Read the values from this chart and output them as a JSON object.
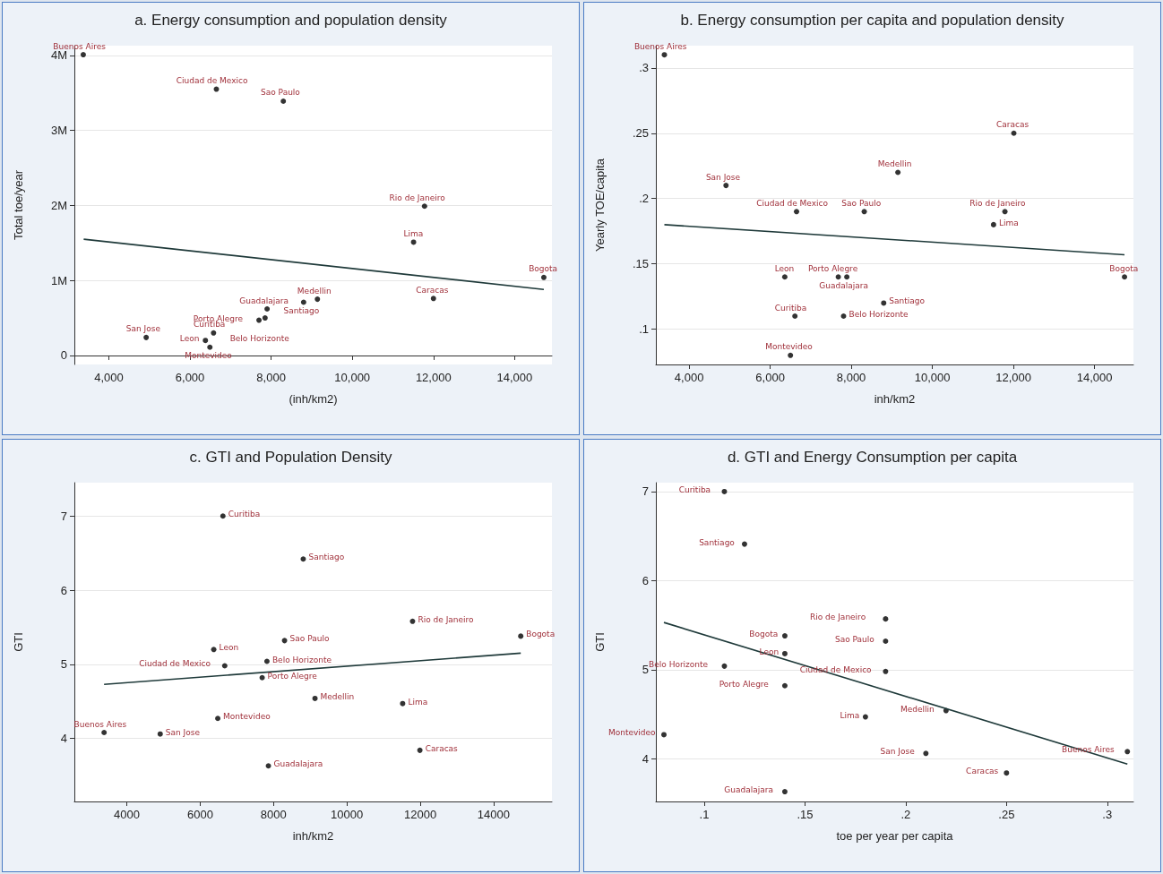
{
  "chart_data": [
    {
      "type": "scatter",
      "title": "a. Energy consumption and population density",
      "xlabel": "(inh/km2)",
      "ylabel": "Total toe/year",
      "xlim": [
        3150,
        14920
      ],
      "ylim": [
        -120000,
        4130000
      ],
      "xticks": [
        {
          "value": 4000,
          "label": "4,000"
        },
        {
          "value": 6000,
          "label": "6,000"
        },
        {
          "value": 8000,
          "label": "8,000"
        },
        {
          "value": 10000,
          "label": "10,000"
        },
        {
          "value": 12000,
          "label": "12,000"
        },
        {
          "value": 14000,
          "label": "14,000"
        }
      ],
      "yticks": [
        0,
        {
          "value": 1000000,
          "label": "1M"
        },
        {
          "value": 2000000,
          "label": "2M"
        },
        {
          "value": 3000000,
          "label": "3M"
        },
        {
          "value": 4000000,
          "label": "4M"
        }
      ],
      "grid": "y",
      "series": [
        {
          "marker": "circle",
          "color": "#000000",
          "x": [
            3370,
            6650,
            8300,
            11780,
            11510,
            14720,
            12000,
            9140,
            8800,
            7900,
            7850,
            7700,
            4920,
            6580,
            6380,
            6490
          ],
          "values": [
            4010000,
            3550000,
            3390000,
            1990000,
            1510000,
            1040000,
            760000,
            750000,
            710000,
            620000,
            500000,
            470000,
            240000,
            300000,
            200000,
            110000
          ]
        },
        {
          "type": "line",
          "color": "#1f3a3a",
          "x": [
            3380,
            14720
          ],
          "values": [
            1550000,
            880000
          ]
        }
      ],
      "annotations": [
        {
          "text": "Buenos Aires",
          "x": 3370,
          "y": 4010000
        },
        {
          "text": "Ciudad de Mexico",
          "x": 6650,
          "y": 3550000
        },
        {
          "text": "Sao Paulo",
          "x": 8300,
          "y": 3390000
        },
        {
          "text": "Rio de Janeiro",
          "x": 11780,
          "y": 1990000
        },
        {
          "text": "Lima",
          "x": 11510,
          "y": 1510000
        },
        {
          "text": "Bogota",
          "x": 14720,
          "y": 1040000
        },
        {
          "text": "Caracas",
          "x": 12000,
          "y": 760000
        },
        {
          "text": "Medellin",
          "x": 9140,
          "y": 750000
        },
        {
          "text": "Santiago",
          "x": 8800,
          "y": 710000
        },
        {
          "text": "Guadalajara",
          "x": 7900,
          "y": 620000
        },
        {
          "text": "Belo Horizonte",
          "x": 7850,
          "y": 500000
        },
        {
          "text": "Porto Alegre",
          "x": 7700,
          "y": 470000
        },
        {
          "text": "San Jose",
          "x": 4920,
          "y": 240000
        },
        {
          "text": "Curitiba",
          "x": 6580,
          "y": 300000
        },
        {
          "text": "Leon",
          "x": 6380,
          "y": 200000
        },
        {
          "text": "Montevideo",
          "x": 6490,
          "y": 110000
        }
      ]
    },
    {
      "type": "scatter",
      "title": "b. Energy consumption per capita and population density",
      "xlabel": "inh/km2",
      "ylabel": "Yearly TOE/capita",
      "xlim": [
        3180,
        14960
      ],
      "ylim": [
        0.073,
        0.317
      ],
      "xticks": [
        {
          "value": 4000,
          "label": "4,000"
        },
        {
          "value": 6000,
          "label": "6,000"
        },
        {
          "value": 8000,
          "label": "8,000"
        },
        {
          "value": 10000,
          "label": "10,000"
        },
        {
          "value": 12000,
          "label": "12,000"
        },
        {
          "value": 14000,
          "label": "14,000"
        }
      ],
      "yticks": [
        {
          "value": 0.1,
          "label": ".1"
        },
        {
          "value": 0.15,
          "label": ".15"
        },
        {
          "value": 0.2,
          "label": ".2"
        },
        {
          "value": 0.25,
          "label": ".25"
        },
        {
          "value": 0.3,
          "label": ".3"
        }
      ],
      "grid": "y",
      "series": [
        {
          "marker": "circle",
          "color": "#000000",
          "x": [
            3390,
            12010,
            9150,
            4910,
            6650,
            8320,
            11790,
            11510,
            6360,
            7680,
            7890,
            14740,
            8800,
            6610,
            7810,
            6500
          ],
          "values": [
            0.31,
            0.25,
            0.22,
            0.21,
            0.19,
            0.19,
            0.19,
            0.18,
            0.14,
            0.14,
            0.14,
            0.14,
            0.12,
            0.11,
            0.11,
            0.08
          ]
        },
        {
          "type": "line",
          "color": "#1f3a3a",
          "x": [
            3390,
            14740
          ],
          "values": [
            0.18,
            0.157
          ]
        }
      ],
      "annotations": [
        {
          "text": "Buenos Aires",
          "x": 3390,
          "y": 0.31
        },
        {
          "text": "Caracas",
          "x": 12010,
          "y": 0.25
        },
        {
          "text": "Medellin",
          "x": 9150,
          "y": 0.22
        },
        {
          "text": "San Jose",
          "x": 4910,
          "y": 0.21
        },
        {
          "text": "Ciudad de Mexico",
          "x": 6650,
          "y": 0.19
        },
        {
          "text": "Sao Paulo",
          "x": 8320,
          "y": 0.19
        },
        {
          "text": "Rio de Janeiro",
          "x": 11790,
          "y": 0.19
        },
        {
          "text": "Lima",
          "x": 11510,
          "y": 0.18
        },
        {
          "text": "Leon",
          "x": 6360,
          "y": 0.14
        },
        {
          "text": "Porto Alegre",
          "x": 7680,
          "y": 0.14
        },
        {
          "text": "Guadalajara",
          "x": 7890,
          "y": 0.14
        },
        {
          "text": "Bogota",
          "x": 14740,
          "y": 0.14
        },
        {
          "text": "Santiago",
          "x": 8800,
          "y": 0.12
        },
        {
          "text": "Curitiba",
          "x": 6610,
          "y": 0.11
        },
        {
          "text": "Belo Horizonte",
          "x": 7810,
          "y": 0.11
        },
        {
          "text": "Montevideo",
          "x": 6500,
          "y": 0.08
        }
      ]
    },
    {
      "type": "scatter",
      "title": "c. GTI and Population Density",
      "xlabel": "inh/km2",
      "ylabel": "GTI",
      "xlim": [
        2570,
        15590
      ],
      "ylim": [
        3.15,
        7.45
      ],
      "xticks": [
        4000,
        6000,
        8000,
        10000,
        12000,
        14000
      ],
      "yticks": [
        4,
        5,
        6,
        7
      ],
      "grid": "y",
      "series": [
        {
          "marker": "circle",
          "color": "#000000",
          "x": [
            6620,
            8810,
            11790,
            14740,
            8300,
            6370,
            7820,
            6670,
            7690,
            9130,
            11520,
            6480,
            3380,
            4910,
            11990,
            7860
          ],
          "values": [
            7.0,
            6.42,
            5.58,
            5.38,
            5.32,
            5.2,
            5.04,
            4.98,
            4.82,
            4.54,
            4.47,
            4.27,
            4.08,
            4.06,
            3.84,
            3.63
          ]
        },
        {
          "type": "line",
          "color": "#1f3a3a",
          "x": [
            3380,
            14740
          ],
          "values": [
            4.73,
            5.15
          ]
        }
      ],
      "annotations": [
        {
          "text": "Curitiba",
          "x": 6620,
          "y": 7.0
        },
        {
          "text": "Santiago",
          "x": 8810,
          "y": 6.42
        },
        {
          "text": "Rio de Janeiro",
          "x": 11790,
          "y": 5.58
        },
        {
          "text": "Bogota",
          "x": 14740,
          "y": 5.38
        },
        {
          "text": "Sao Paulo",
          "x": 8300,
          "y": 5.32
        },
        {
          "text": "Leon",
          "x": 6370,
          "y": 5.2
        },
        {
          "text": "Belo Horizonte",
          "x": 7820,
          "y": 5.04
        },
        {
          "text": "Ciudad de Mexico",
          "x": 6670,
          "y": 4.98
        },
        {
          "text": "Porto Alegre",
          "x": 7690,
          "y": 4.82
        },
        {
          "text": "Medellin",
          "x": 9130,
          "y": 4.54
        },
        {
          "text": "Lima",
          "x": 11520,
          "y": 4.47
        },
        {
          "text": "Montevideo",
          "x": 6480,
          "y": 4.27
        },
        {
          "text": "Buenos Aires",
          "x": 3380,
          "y": 4.08
        },
        {
          "text": "San Jose",
          "x": 4910,
          "y": 4.06
        },
        {
          "text": "Caracas",
          "x": 11990,
          "y": 3.84
        },
        {
          "text": "Guadalajara",
          "x": 7860,
          "y": 3.63
        }
      ]
    },
    {
      "type": "scatter",
      "title": "d. GTI and Energy Consumption per capita",
      "xlabel": "toe per year per capita",
      "ylabel": "GTI",
      "xlim": [
        0.076,
        0.313
      ],
      "ylim": [
        3.52,
        7.1
      ],
      "xticks": [
        {
          "value": 0.1,
          "label": ".1"
        },
        {
          "value": 0.15,
          "label": ".15"
        },
        {
          "value": 0.2,
          "label": ".2"
        },
        {
          "value": 0.25,
          "label": ".25"
        },
        {
          "value": 0.3,
          "label": ".3"
        }
      ],
      "yticks": [
        4,
        5,
        6,
        7
      ],
      "grid": "y",
      "series": [
        {
          "marker": "circle",
          "color": "#000000",
          "x": [
            0.11,
            0.12,
            0.19,
            0.14,
            0.19,
            0.14,
            0.11,
            0.19,
            0.14,
            0.18,
            0.22,
            0.08,
            0.21,
            0.31,
            0.25,
            0.14
          ],
          "values": [
            7.0,
            6.41,
            5.57,
            5.38,
            5.32,
            5.18,
            5.04,
            4.98,
            4.82,
            4.47,
            4.54,
            4.27,
            4.06,
            4.08,
            3.84,
            3.63
          ]
        },
        {
          "type": "line",
          "color": "#1f3a3a",
          "x": [
            0.08,
            0.31
          ],
          "values": [
            5.53,
            3.94
          ]
        }
      ],
      "annotations": [
        {
          "text": "Curitiba",
          "x": 0.11,
          "y": 7.0
        },
        {
          "text": "Santiago",
          "x": 0.12,
          "y": 6.41
        },
        {
          "text": "Rio de Janeiro",
          "x": 0.19,
          "y": 5.57
        },
        {
          "text": "Bogota",
          "x": 0.14,
          "y": 5.38
        },
        {
          "text": "Sao Paulo",
          "x": 0.19,
          "y": 5.32
        },
        {
          "text": "Leon",
          "x": 0.14,
          "y": 5.18
        },
        {
          "text": "Belo Horizonte",
          "x": 0.11,
          "y": 5.04
        },
        {
          "text": "Ciudad de Mexico",
          "x": 0.19,
          "y": 4.98
        },
        {
          "text": "Porto Alegre",
          "x": 0.14,
          "y": 4.82
        },
        {
          "text": "Lima",
          "x": 0.18,
          "y": 4.47
        },
        {
          "text": "Medellin",
          "x": 0.22,
          "y": 4.54
        },
        {
          "text": "Montevideo",
          "x": 0.08,
          "y": 4.27
        },
        {
          "text": "San Jose",
          "x": 0.21,
          "y": 4.06
        },
        {
          "text": "Buenos Aires",
          "x": 0.31,
          "y": 4.08
        },
        {
          "text": "Caracas",
          "x": 0.25,
          "y": 3.84
        },
        {
          "text": "Guadalajara",
          "x": 0.14,
          "y": 3.63
        }
      ]
    }
  ]
}
